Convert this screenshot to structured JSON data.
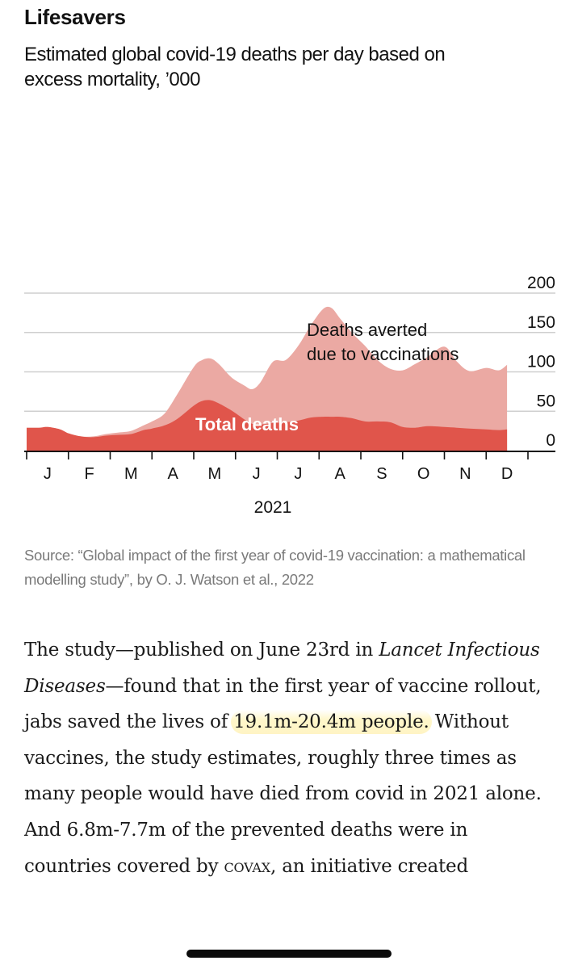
{
  "header": {
    "title": "Lifesavers",
    "subtitle": "Estimated global covid-19 deaths per day based on excess mortality, ’000"
  },
  "chart_data": {
    "type": "area",
    "title": "Lifesavers",
    "subtitle": "Estimated global covid-19 deaths per day based on excess mortality, ’000",
    "xlabel": "2021",
    "ylabel": "",
    "ylim": [
      0,
      200
    ],
    "yticks": [
      0,
      50,
      100,
      150,
      200
    ],
    "ytick_labels": [
      "0",
      "50",
      "100",
      "150",
      "200"
    ],
    "xticks": [
      "J",
      "F",
      "M",
      "A",
      "M",
      "J",
      "J",
      "A",
      "S",
      "O",
      "N",
      "D"
    ],
    "x_year_label": "2021",
    "grid": "horizontal",
    "y_axis_position": "right",
    "x": [
      0.0,
      0.3,
      0.5,
      0.8,
      1.0,
      1.3,
      1.6,
      1.9,
      2.2,
      2.5,
      2.8,
      3.0,
      3.3,
      3.6,
      4.0,
      4.2,
      4.4,
      4.6,
      4.9,
      5.2,
      5.4,
      5.6,
      5.9,
      6.2,
      6.5,
      6.8,
      7.1,
      7.3,
      7.5,
      7.8,
      8.1,
      8.4,
      8.7,
      9.0,
      9.3,
      9.6,
      10.0,
      10.3,
      10.6,
      11.0,
      11.3,
      11.5
    ],
    "series": [
      {
        "name": "Total deaths",
        "color": "#e0554b",
        "values": [
          29,
          29,
          30,
          27,
          22,
          18,
          17,
          19,
          20,
          21,
          26,
          28,
          32,
          40,
          57,
          63,
          64,
          60,
          51,
          40,
          34,
          33,
          35,
          36,
          38,
          42,
          43,
          43,
          43,
          41,
          37,
          37,
          36,
          30,
          29,
          31,
          30,
          29,
          28,
          27,
          26,
          27
        ]
      },
      {
        "name": "Deaths averted due to vaccinations",
        "color": "#eba9a3",
        "values": [
          0,
          0,
          0,
          0,
          0,
          0,
          1,
          2,
          3,
          4,
          6,
          9,
          15,
          31,
          49,
          52,
          53,
          50,
          42,
          43,
          44,
          54,
          78,
          79,
          95,
          117,
          137,
          138,
          125,
          108,
          96,
          78,
          68,
          72,
          81,
          88,
          102,
          84,
          73,
          78,
          76,
          82
        ]
      }
    ],
    "annotations": [
      "Deaths averted due to vaccinations",
      "Total deaths"
    ]
  },
  "source": "Source: “Global impact of the first year of covid-19 vaccination: a mathematical modelling study”, by O. J. Watson et al., 2022",
  "article": {
    "p1": "The study—published on June 23rd in ",
    "p1_italic": "Lancet Infectious Diseases",
    "p2": "—found that in the first year of vaccine rollout, jabs saved the lives of ",
    "highlight": "19.1m-20.4m people.",
    "p3": " Without vaccines, the study estimates, roughly three times as many people would have died from covid in 2021 alone. And 6.8m-7.7m of the prevented deaths were in countries covered by ",
    "smallcaps": "covax",
    "p4": ", an initiative created"
  }
}
